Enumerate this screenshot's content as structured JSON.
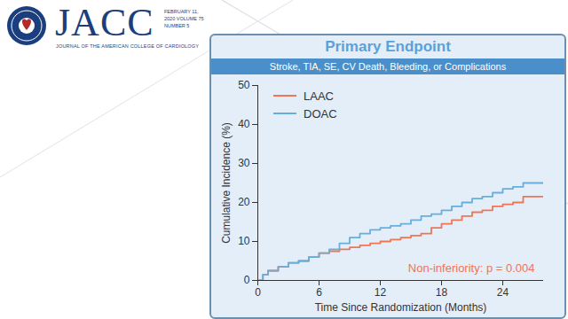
{
  "header": {
    "journal": "JACC",
    "journal_subtitle": "JOURNAL OF THE AMERICAN COLLEGE OF CARDIOLOGY",
    "issue": "FEBRUARY 11, 2020 VOLUME 75 NUMBER 5"
  },
  "chart_data": {
    "type": "line",
    "title": "Primary Endpoint",
    "subtitle": "Stroke, TIA, SE, CV Death, Bleeding, or Complications",
    "xlabel": "Time Since Randomization (Months)",
    "ylabel": "Cumulative Incidence (%)",
    "x": [
      0,
      0.5,
      1,
      2,
      3,
      4,
      5,
      6,
      7,
      8,
      9,
      10,
      11,
      12,
      13,
      14,
      15,
      16,
      17,
      18,
      19,
      20,
      21,
      22,
      23,
      24,
      25,
      26,
      27,
      28
    ],
    "series": [
      {
        "name": "LAAC",
        "color": "#ee7556",
        "values": [
          0,
          1.5,
          2.5,
          3.5,
          4.5,
          5,
          6,
          7,
          7.5,
          8,
          8.5,
          9,
          9.5,
          10,
          10.5,
          11,
          11.5,
          12,
          13.5,
          14.5,
          15.5,
          16.5,
          17.5,
          18,
          19,
          19.5,
          20,
          21.5,
          21.5,
          21.5
        ]
      },
      {
        "name": "DOAC",
        "color": "#66aedc",
        "values": [
          0,
          1.5,
          2.5,
          3.5,
          4.5,
          5,
          6,
          7,
          8,
          9.5,
          11,
          12,
          13,
          13.5,
          14,
          14.5,
          15.5,
          16.5,
          17,
          18,
          19,
          20,
          21,
          21.5,
          22.5,
          23.5,
          24,
          25,
          25,
          25
        ]
      }
    ],
    "annotation": "Non-inferiority: p = 0.004",
    "xlim": [
      0,
      28
    ],
    "xticks": [
      0,
      6,
      12,
      18,
      24
    ],
    "ylim": [
      0,
      50
    ],
    "yticks": [
      0,
      10,
      20,
      30,
      40,
      50
    ],
    "line_style": "step",
    "grid": false,
    "legend": "top-left"
  }
}
